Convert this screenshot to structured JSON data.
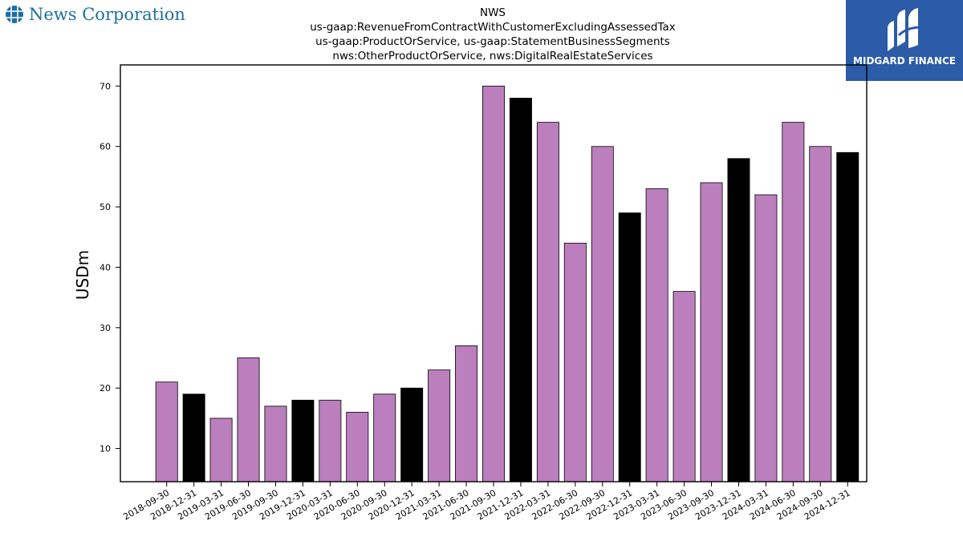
{
  "header": {
    "logo_text": "News Corporation",
    "logo_icon": "globe-grid-icon",
    "title_lines": [
      "NWS",
      "us-gaap:RevenueFromContractWithCustomerExcludingAssessedTax",
      "us-gaap:ProductOrService, us-gaap:StatementBusinessSegments",
      "nws:OtherProductOrService, nws:DigitalRealEstateServices"
    ],
    "brand_name": "MIDGARD FINANCE",
    "brand_icon": "midgard-m-icon"
  },
  "colors": {
    "bar_regular": "#bb7fbd",
    "bar_year_end": "#000000",
    "logo_blue": "#1f6fa0",
    "brand_bg": "#2c5ba8"
  },
  "chart_data": {
    "type": "bar",
    "title": "",
    "xlabel": "",
    "ylabel": "USDm",
    "ylim": [
      4.5,
      73.5
    ],
    "yticks": [
      10,
      20,
      30,
      40,
      50,
      60,
      70
    ],
    "grid": false,
    "categories": [
      "2018-09-30",
      "2018-12-31",
      "2019-03-31",
      "2019-06-30",
      "2019-09-30",
      "2019-12-31",
      "2020-03-31",
      "2020-06-30",
      "2020-09-30",
      "2020-12-31",
      "2021-03-31",
      "2021-06-30",
      "2021-09-30",
      "2021-12-31",
      "2022-03-31",
      "2022-06-30",
      "2022-09-30",
      "2022-12-31",
      "2023-03-31",
      "2023-06-30",
      "2023-09-30",
      "2023-12-31",
      "2024-03-31",
      "2024-06-30",
      "2024-09-30",
      "2024-12-31"
    ],
    "values": [
      21,
      19,
      15,
      25,
      17,
      18,
      18,
      16,
      19,
      20,
      23,
      27,
      70,
      68,
      64,
      44,
      60,
      49,
      53,
      36,
      54,
      58,
      52,
      64,
      60,
      59
    ]
  }
}
